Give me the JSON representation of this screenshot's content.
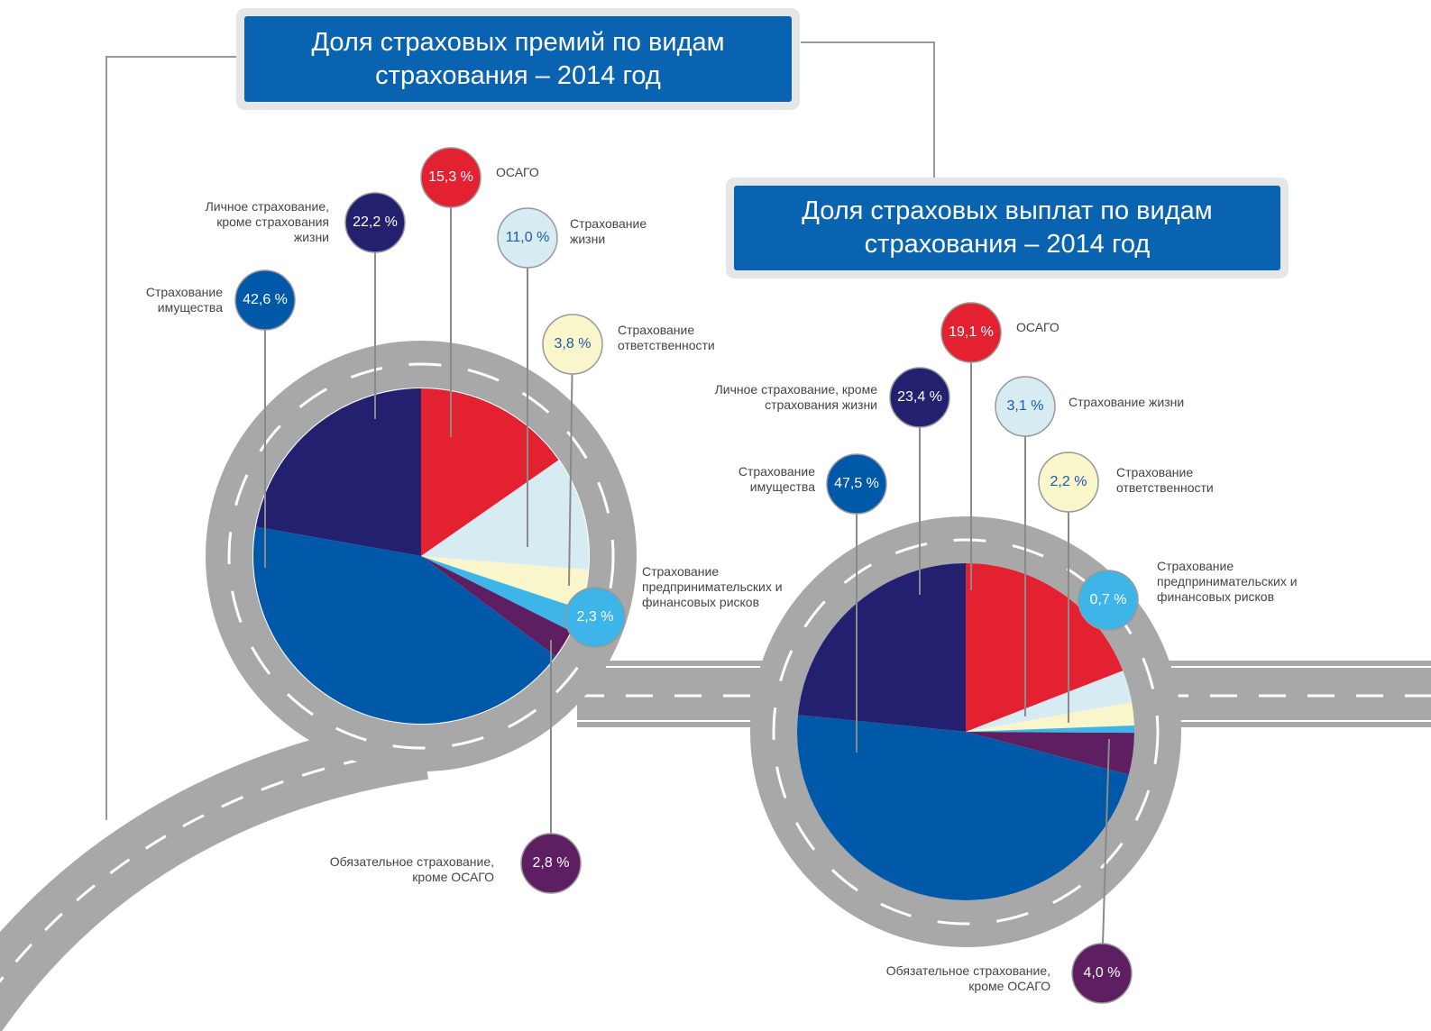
{
  "chart_data": [
    {
      "type": "pie",
      "title": "Доля страховых премий по видам страхования – 2014 год",
      "categories": [
        "ОСАГО",
        "Страхование жизни",
        "Страхование ответственности",
        "Страхование предпринимательских и финансовых рисков",
        "Обязательное страхование, кроме ОСАГО",
        "Страхование имущества",
        "Личное страхование, кроме страхования жизни"
      ],
      "values": [
        15.3,
        11.0,
        3.8,
        2.3,
        2.8,
        42.6,
        22.2
      ],
      "value_labels": [
        "15,3 %",
        "11,0 %",
        "3,8 %",
        "2,3 %",
        "2,8 %",
        "42,6 %",
        "22,2 %"
      ],
      "colors": [
        "#e42130",
        "#d6ecf2",
        "#faf6cc",
        "#3db5e8",
        "#5d1e62",
        "#0059a8",
        "#242070"
      ]
    },
    {
      "type": "pie",
      "title": "Доля страховых выплат по видам страхования – 2014 год",
      "categories": [
        "ОСАГО",
        "Страхование жизни",
        "Страхование ответственности",
        "Страхование предпринимательских и финансовых рисков",
        "Обязательное страхование, кроме ОСАГО",
        "Страхование имущества",
        "Личное страхование, кроме страхования жизни"
      ],
      "values": [
        19.1,
        3.1,
        2.2,
        0.7,
        4.0,
        47.5,
        23.4
      ],
      "value_labels": [
        "19,1 %",
        "3,1 %",
        "2,2 %",
        "0,7 %",
        "4,0 %",
        "47,5 %",
        "23,4 %"
      ],
      "colors": [
        "#e42130",
        "#d6ecf2",
        "#faf6cc",
        "#3db5e8",
        "#5d1e62",
        "#0059a8",
        "#242070"
      ]
    }
  ]
}
